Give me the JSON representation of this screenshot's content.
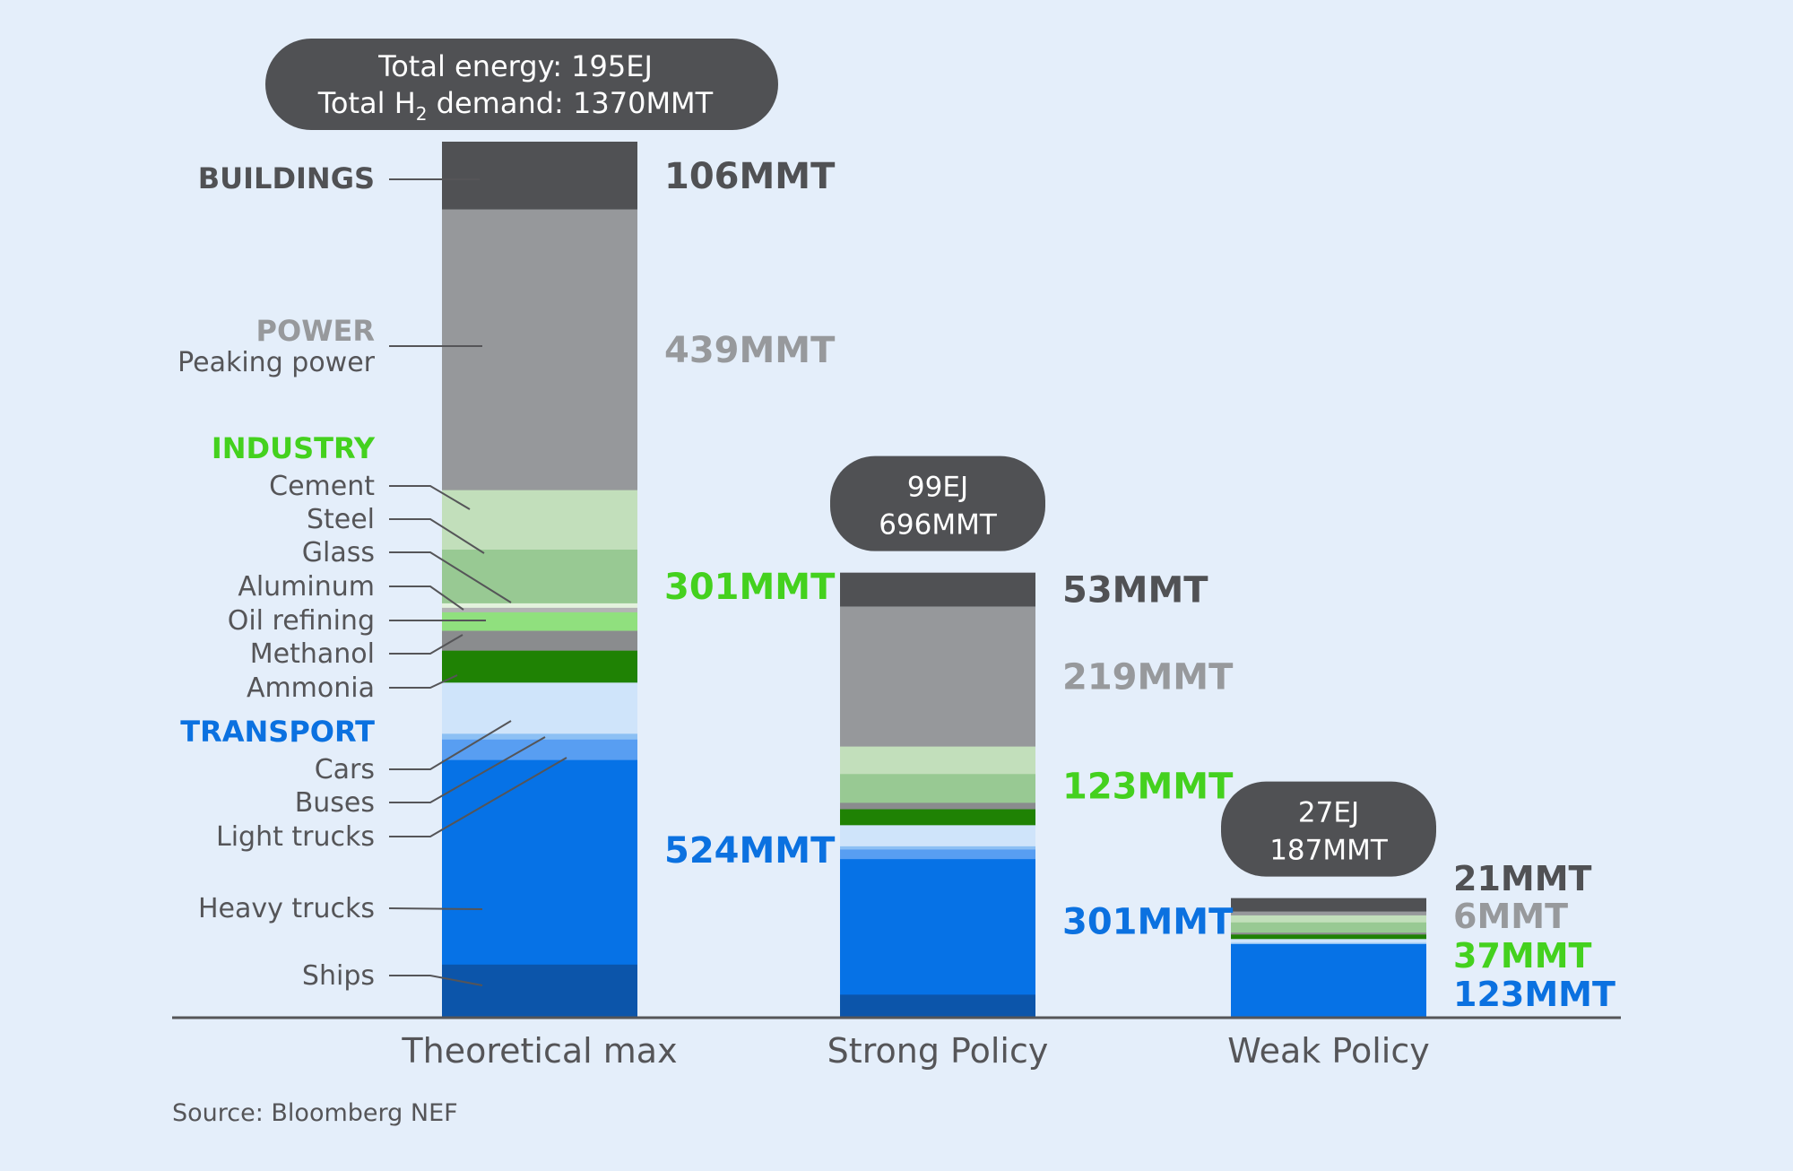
{
  "chart_data": {
    "type": "bar",
    "stacked": true,
    "unit": "MMT",
    "source": "Source: Bloomberg NEF",
    "colors": {
      "Buildings": "#505154",
      "Power": "#96989b",
      "Cement": "#c2dfbb",
      "Steel": "#98c993",
      "Glass": "#e3f2dd",
      "Aluminum": "#b3b4b5",
      "Oil refining": "#90e07e",
      "Methanol": "#8a8c8e",
      "Ammonia": "#1f8204",
      "Cars": "#cfe4fa",
      "Buses": "#8cc0f4",
      "Light trucks": "#589ef2",
      "Heavy trucks": "#0672e6",
      "Ships": "#0c55aa",
      "label_buildings": "#505154",
      "label_power": "#97999c",
      "label_industry": "#44d11e",
      "label_transport": "#0b71e0",
      "pill": "#505154",
      "axis": "#555558"
    },
    "group_headings": {
      "buildings": "BUILDINGS",
      "power": "POWER",
      "industry": "INDUSTRY",
      "transport": "TRANSPORT"
    },
    "segment_labels": [
      "Peaking power",
      "Cement",
      "Steel",
      "Glass",
      "Aluminum",
      "Oil refining",
      "Methanol",
      "Ammonia",
      "Cars",
      "Buses",
      "Light trucks",
      "Heavy trucks",
      "Ships"
    ],
    "bars": [
      {
        "category": "Theoretical max",
        "total_energy_line": "Total energy: 195EJ",
        "total_demand_prefix": "Total H",
        "total_demand_sub": "2",
        "total_demand_suffix": " demand: 1370MMT",
        "group_totals": {
          "buildings": "106MMT",
          "power": "439MMT",
          "industry": "301MMT",
          "transport": "524MMT"
        },
        "segments": [
          {
            "name": "Buildings",
            "value": 106
          },
          {
            "name": "Power",
            "value": 439
          },
          {
            "name": "Cement",
            "value": 93
          },
          {
            "name": "Steel",
            "value": 84
          },
          {
            "name": "Glass",
            "value": 7
          },
          {
            "name": "Aluminum",
            "value": 7
          },
          {
            "name": "Oil refining",
            "value": 29
          },
          {
            "name": "Methanol",
            "value": 31
          },
          {
            "name": "Ammonia",
            "value": 50
          },
          {
            "name": "Cars",
            "value": 80
          },
          {
            "name": "Buses",
            "value": 9
          },
          {
            "name": "Light trucks",
            "value": 32
          },
          {
            "name": "Heavy trucks",
            "value": 320
          },
          {
            "name": "Ships",
            "value": 83
          }
        ]
      },
      {
        "category": "Strong Policy",
        "pill_line1": "99EJ",
        "pill_line2": "696MMT",
        "group_totals": {
          "buildings": "53MMT",
          "power": "219MMT",
          "industry": "123MMT",
          "transport": "301MMT"
        },
        "segments": [
          {
            "name": "Buildings",
            "value": 53
          },
          {
            "name": "Power",
            "value": 219
          },
          {
            "name": "Cement",
            "value": 43
          },
          {
            "name": "Steel",
            "value": 45
          },
          {
            "name": "Methanol",
            "value": 10
          },
          {
            "name": "Ammonia",
            "value": 25
          },
          {
            "name": "Cars",
            "value": 33
          },
          {
            "name": "Buses",
            "value": 5
          },
          {
            "name": "Light trucks",
            "value": 15
          },
          {
            "name": "Heavy trucks",
            "value": 212
          },
          {
            "name": "Ships",
            "value": 36
          }
        ]
      },
      {
        "category": "Weak Policy",
        "pill_line1": "27EJ",
        "pill_line2": "187MMT",
        "group_totals": {
          "buildings": "21MMT",
          "power": "6MMT",
          "industry": "37MMT",
          "transport": "123MMT"
        },
        "segments": [
          {
            "name": "Buildings",
            "value": 21
          },
          {
            "name": "Power",
            "value": 6
          },
          {
            "name": "Cement",
            "value": 11
          },
          {
            "name": "Steel",
            "value": 16
          },
          {
            "name": "Methanol",
            "value": 3
          },
          {
            "name": "Ammonia",
            "value": 7
          },
          {
            "name": "Cars",
            "value": 6
          },
          {
            "name": "Buses",
            "value": 2
          },
          {
            "name": "Heavy trucks",
            "value": 115
          }
        ]
      }
    ]
  }
}
